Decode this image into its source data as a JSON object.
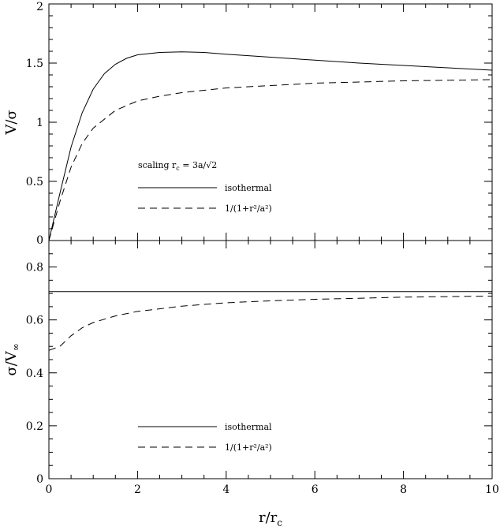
{
  "chart_data": [
    {
      "type": "line",
      "panel": "top",
      "ylabel": "V/σ",
      "xlim": [
        0,
        10
      ],
      "ylim": [
        0,
        2
      ],
      "yticks": [
        0,
        0.5,
        1,
        1.5,
        2
      ],
      "ytick_labels": [
        "0",
        "0.5",
        "1",
        "1.5",
        "2"
      ],
      "legend": {
        "title": "scaling r",
        "title_sub": "c",
        "title_rest": " = 3a/√2",
        "entries": [
          "isothermal",
          "1/(1+r²/a²)"
        ]
      },
      "series": [
        {
          "name": "isothermal",
          "style": "solid",
          "x": [
            0,
            0.25,
            0.5,
            0.75,
            1,
            1.25,
            1.5,
            1.75,
            2,
            2.5,
            3,
            3.5,
            4,
            5,
            6,
            7,
            8,
            9,
            10
          ],
          "y": [
            0,
            0.4,
            0.79,
            1.08,
            1.28,
            1.41,
            1.49,
            1.54,
            1.57,
            1.59,
            1.595,
            1.59,
            1.575,
            1.55,
            1.525,
            1.5,
            1.48,
            1.46,
            1.44
          ]
        },
        {
          "name": "1/(1+r²/a²)",
          "style": "dashed",
          "x": [
            0,
            0.25,
            0.5,
            0.75,
            1,
            1.5,
            2,
            2.5,
            3,
            4,
            5,
            6,
            7,
            8,
            9,
            10
          ],
          "y": [
            0,
            0.33,
            0.62,
            0.82,
            0.95,
            1.1,
            1.18,
            1.22,
            1.25,
            1.29,
            1.31,
            1.33,
            1.34,
            1.35,
            1.355,
            1.36
          ]
        }
      ]
    },
    {
      "type": "line",
      "panel": "bottom",
      "ylabel": "σ/V",
      "ylabel_sub": "∞",
      "xlabel": "r/r",
      "xlabel_sub": "c",
      "xlim": [
        0,
        10
      ],
      "ylim": [
        0,
        0.9
      ],
      "xticks": [
        0,
        2,
        4,
        6,
        8,
        10
      ],
      "xtick_labels": [
        "0",
        "2",
        "4",
        "6",
        "8",
        "10"
      ],
      "yticks": [
        0,
        0.2,
        0.4,
        0.6,
        0.8
      ],
      "ytick_labels": [
        "0",
        "0.2",
        "0.4",
        "0.6",
        "0.8"
      ],
      "legend": {
        "entries": [
          "isothermal",
          "1/(1+r²/a²)"
        ]
      },
      "series": [
        {
          "name": "isothermal",
          "style": "solid",
          "x": [
            0,
            10
          ],
          "y": [
            0.707,
            0.707
          ]
        },
        {
          "name": "1/(1+r²/a²)",
          "style": "dashed",
          "x": [
            0,
            0.25,
            0.5,
            0.75,
            1,
            1.5,
            2,
            2.5,
            3,
            4,
            5,
            6,
            7,
            8,
            9,
            10
          ],
          "y": [
            0.485,
            0.5,
            0.54,
            0.57,
            0.59,
            0.615,
            0.632,
            0.642,
            0.652,
            0.665,
            0.672,
            0.678,
            0.682,
            0.686,
            0.688,
            0.69
          ]
        }
      ]
    }
  ]
}
